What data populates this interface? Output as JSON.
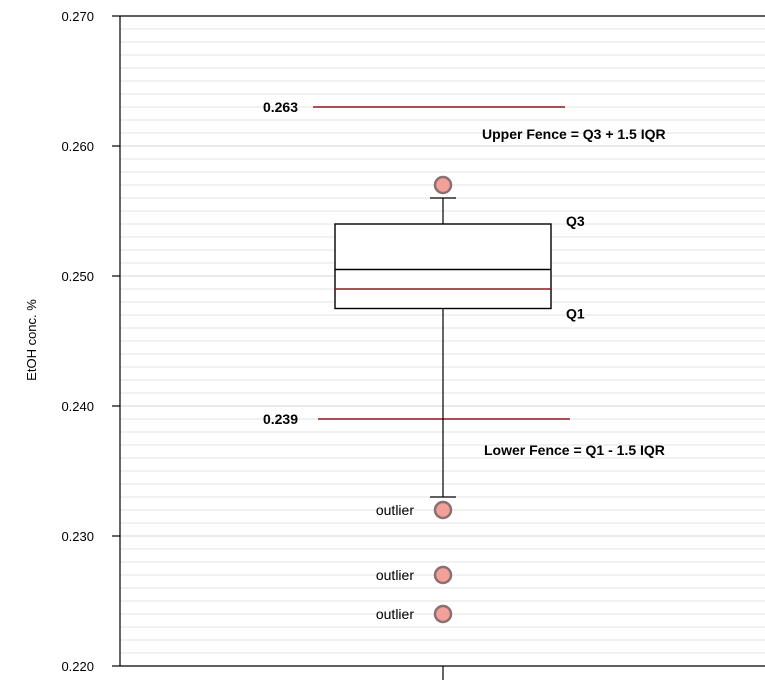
{
  "chart_data": {
    "type": "box",
    "ylabel": "EtOH conc. %",
    "ylim": [
      0.22,
      0.27
    ],
    "y_ticks": [
      "0.220",
      "0.230",
      "0.240",
      "0.250",
      "0.260",
      "0.270"
    ],
    "grid": "horizontal minor lines",
    "box": {
      "q1": 0.2475,
      "median": 0.2505,
      "mean": 0.249,
      "q3": 0.254,
      "whisker_low": 0.233,
      "whisker_high": 0.256,
      "q1_label": "Q1",
      "q3_label": "Q3"
    },
    "fences": {
      "upper": {
        "value": 0.263,
        "value_label": "0.263",
        "label": "Upper Fence = Q3 + 1.5 IQR"
      },
      "lower": {
        "value": 0.239,
        "value_label": "0.239",
        "label": "Lower Fence = Q1 - 1.5 IQR"
      }
    },
    "outliers": [
      {
        "value": 0.257,
        "label": ""
      },
      {
        "value": 0.232,
        "label": "outlier"
      },
      {
        "value": 0.227,
        "label": "outlier"
      },
      {
        "value": 0.224,
        "label": "outlier"
      }
    ],
    "colors": {
      "fence": "#8b1a1a",
      "mean_line": "#8b1a1a",
      "outlier_fill": "#f4a09a",
      "outlier_stroke": "#8a7070",
      "grid": "#e3e3e3"
    }
  }
}
